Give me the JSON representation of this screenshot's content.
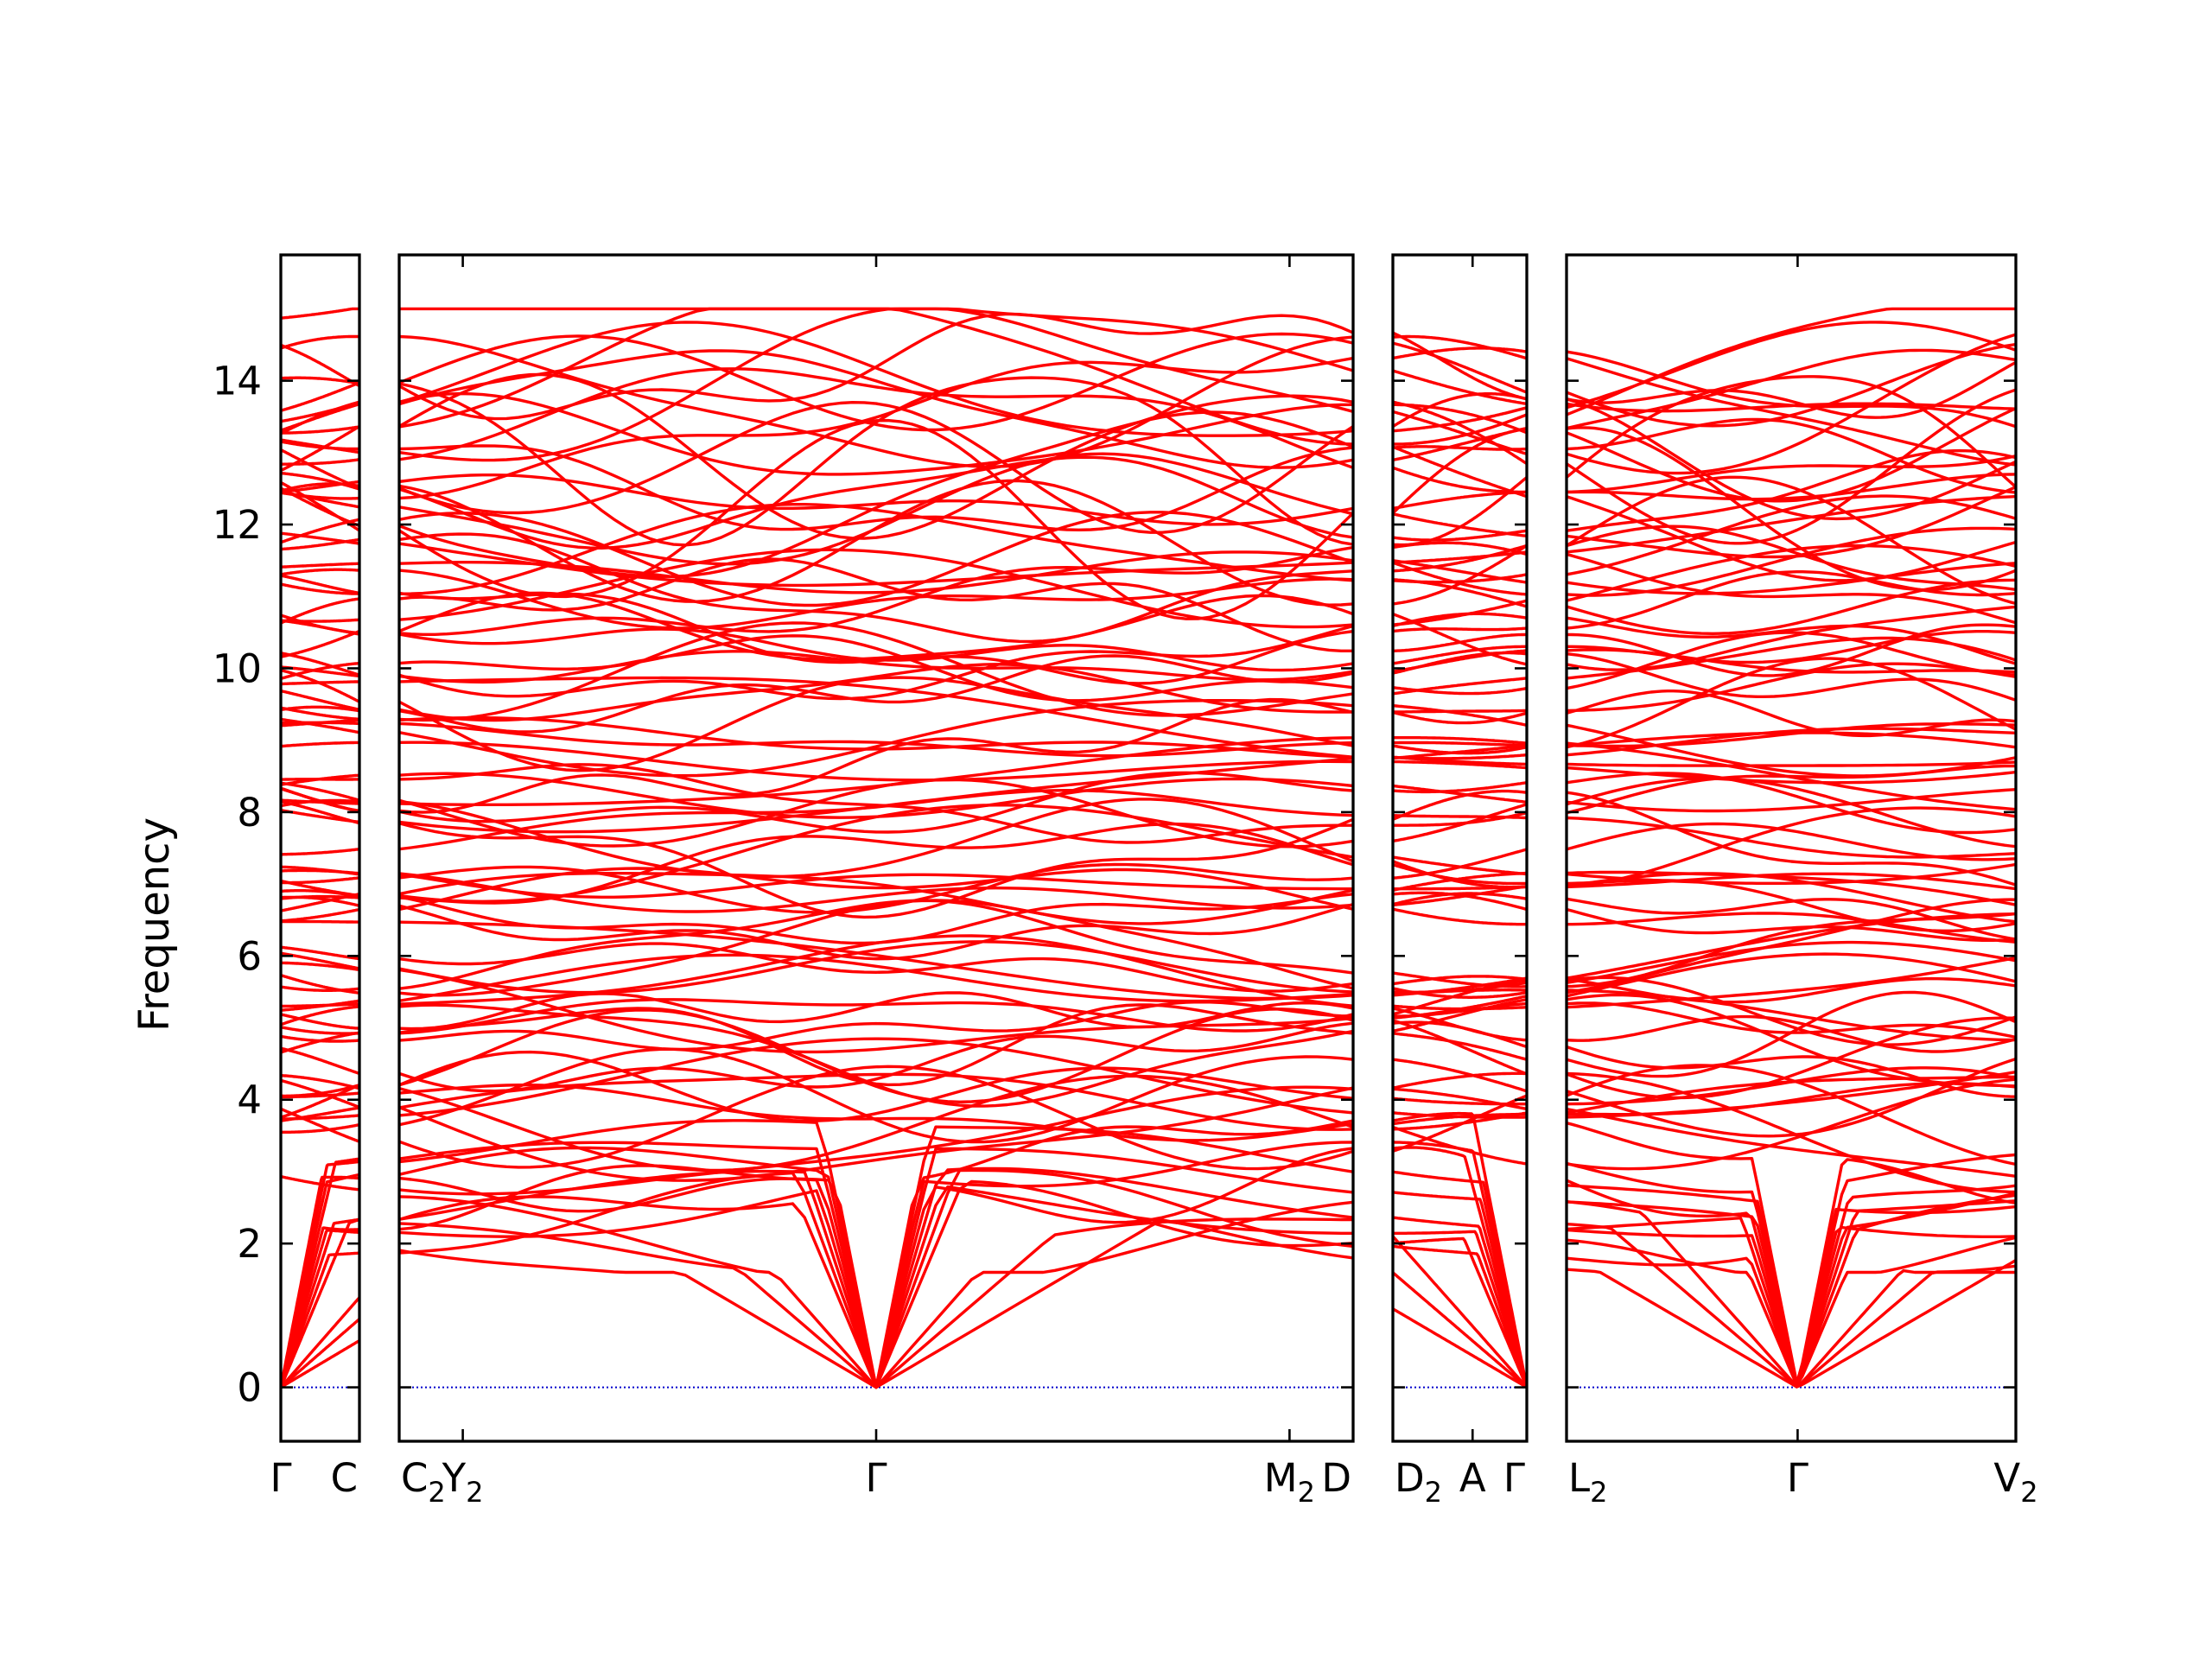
{
  "chart_data": {
    "type": "line",
    "title": "",
    "xlabel": "",
    "ylabel": "Frequency",
    "ylim": [
      -0.75,
      15.75
    ],
    "yticks": [
      0,
      2,
      4,
      6,
      8,
      10,
      12,
      14
    ],
    "grid": false,
    "legend": "none",
    "colors": {
      "bands": "#ff0000",
      "zero_line": "#0000cc",
      "axes": "#000000"
    },
    "segments": [
      {
        "length": 0.25,
        "ticks": [
          {
            "pos": 0.0,
            "label": "Γ"
          },
          {
            "pos": 0.25,
            "label": "C"
          }
        ]
      },
      {
        "length": 3.0,
        "ticks": [
          {
            "pos": 0.0,
            "label": "C",
            "sub": "2"
          },
          {
            "pos": 0.2,
            "label": "Y",
            "sub": "2"
          },
          {
            "pos": 1.5,
            "label": "Γ"
          },
          {
            "pos": 2.8,
            "label": "M",
            "sub": "2"
          },
          {
            "pos": 3.0,
            "label": "D"
          }
        ]
      },
      {
        "length": 0.42,
        "ticks": [
          {
            "pos": 0.0,
            "label": "D",
            "sub": "2"
          },
          {
            "pos": 0.25,
            "label": "A"
          },
          {
            "pos": 0.42,
            "label": "Γ"
          }
        ]
      },
      {
        "length": 1.4,
        "ticks": [
          {
            "pos": 0.0,
            "label": "L",
            "sub": "2"
          },
          {
            "pos": 0.72,
            "label": "Γ"
          },
          {
            "pos": 1.4,
            "label": "V",
            "sub": "2"
          }
        ]
      }
    ],
    "band_count_approx": 100,
    "frequency_range": [
      0,
      15.0
    ],
    "gamma_acoustic_value": 0
  }
}
